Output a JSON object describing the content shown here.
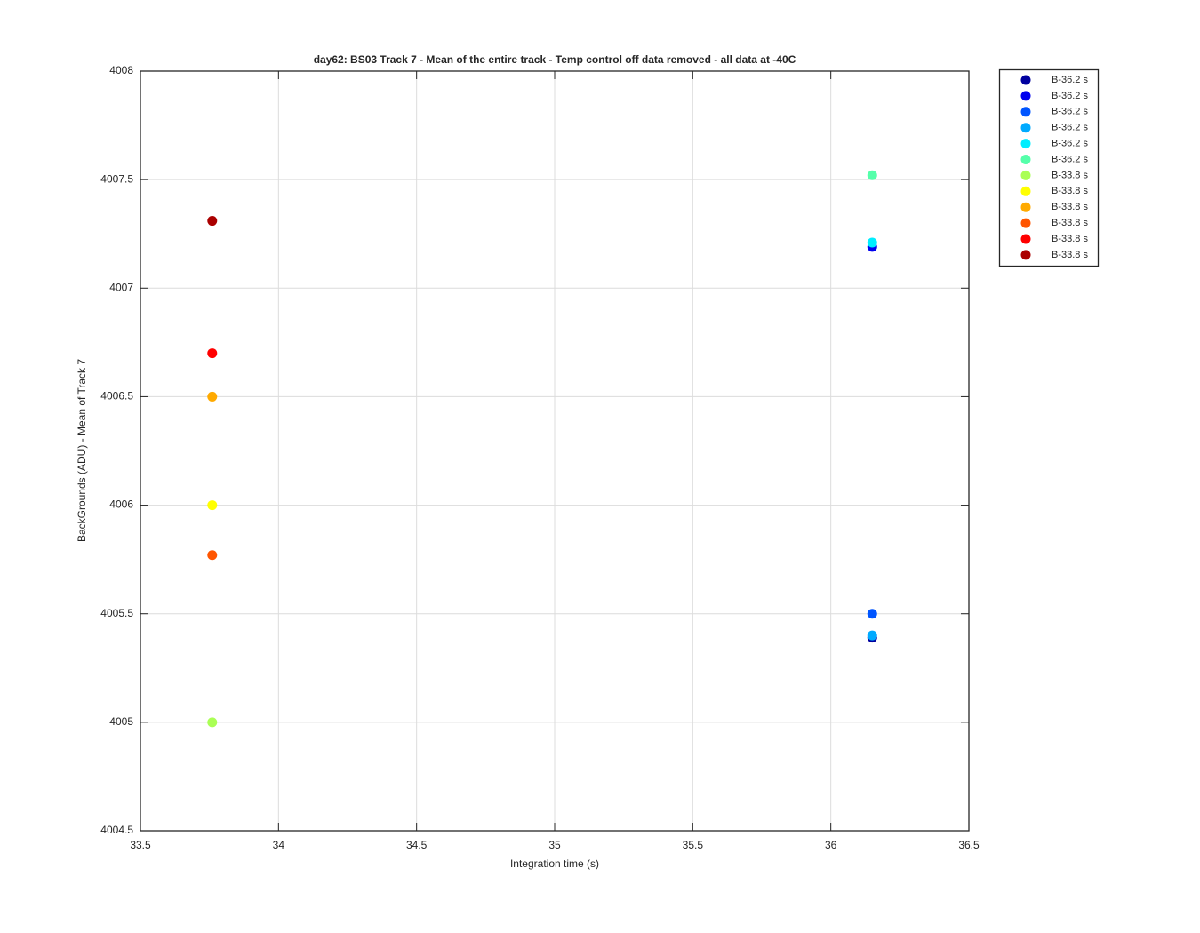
{
  "chart_data": {
    "type": "scatter",
    "title": "day62: BS03  Track 7 - Mean of the entire track - Temp control off data removed - all data at -40C",
    "x_label": "Integration time (s)",
    "y_label": "BackGrounds (ADU) - Mean of Track 7",
    "xlim": [
      33.5,
      36.5
    ],
    "xticks": [
      33.5,
      34,
      34.5,
      35,
      35.5,
      36,
      36.5
    ],
    "ylim": [
      4004.5,
      4008
    ],
    "yticks": [
      4004.5,
      4005,
      4005.5,
      4006,
      4006.5,
      4007,
      4007.5,
      4008
    ],
    "grid": true,
    "legend_position": "outside-right-top",
    "series": [
      {
        "name": "B-36.2 s",
        "color": "#00009f",
        "x": [
          36.15
        ],
        "values": [
          4005.39
        ]
      },
      {
        "name": "B-36.2 s",
        "color": "#0000ee",
        "x": [
          36.15
        ],
        "values": [
          4007.19
        ]
      },
      {
        "name": "B-36.2 s",
        "color": "#0055ff",
        "x": [
          36.15
        ],
        "values": [
          4005.5
        ]
      },
      {
        "name": "B-36.2 s",
        "color": "#00aaff",
        "x": [
          36.15
        ],
        "values": [
          4005.4
        ]
      },
      {
        "name": "B-36.2 s",
        "color": "#00eeff",
        "x": [
          36.15
        ],
        "values": [
          4007.21
        ]
      },
      {
        "name": "B-36.2 s",
        "color": "#55ffaa",
        "x": [
          36.15
        ],
        "values": [
          4007.52
        ]
      },
      {
        "name": "B-33.8 s",
        "color": "#aaff55",
        "x": [
          33.76
        ],
        "values": [
          4005.0
        ]
      },
      {
        "name": "B-33.8 s",
        "color": "#ffff00",
        "x": [
          33.76
        ],
        "values": [
          4006.0
        ]
      },
      {
        "name": "B-33.8 s",
        "color": "#ffaa00",
        "x": [
          33.76
        ],
        "values": [
          4006.5
        ]
      },
      {
        "name": "B-33.8 s",
        "color": "#ff5500",
        "x": [
          33.76
        ],
        "values": [
          4005.77
        ]
      },
      {
        "name": "B-33.8 s",
        "color": "#ff0000",
        "x": [
          33.76
        ],
        "values": [
          4006.7
        ]
      },
      {
        "name": "B-33.8 s",
        "color": "#aa0000",
        "x": [
          33.76
        ],
        "values": [
          4007.31
        ]
      }
    ]
  }
}
